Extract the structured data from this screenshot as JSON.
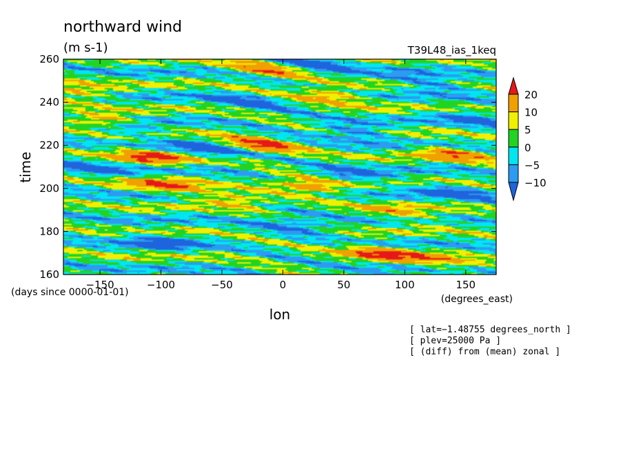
{
  "chart_data": {
    "type": "heatmap",
    "title": "northward wind",
    "units": "(m s-1)",
    "dataset": "T39L48_ias_1keq",
    "xlabel": "lon",
    "xunits": "(degrees_east)",
    "ylabel": "time",
    "yunits": "(days since 0000-01-01)",
    "xlim": [
      -180,
      175
    ],
    "ylim": [
      160,
      260
    ],
    "xticks": [
      -150,
      -100,
      -50,
      0,
      50,
      100,
      150
    ],
    "yticks": [
      160,
      180,
      200,
      220,
      240,
      260
    ],
    "colorbar": {
      "levels": [
        -10,
        -5,
        0,
        5,
        10,
        20
      ],
      "labels": [
        "20",
        "10",
        "5",
        "0",
        "−5",
        "−10"
      ],
      "colors": [
        "#1e64dc",
        "#2d9bf0",
        "#00e6f0",
        "#22d422",
        "#f0f000",
        "#f0a000",
        "#e61919"
      ]
    },
    "annotations": [
      "[ lat=−1.48755 degrees_north ]",
      "[ plev=25000 Pa ]",
      "[ (diff) from (mean) zonal ]"
    ],
    "features": [
      {
        "lon": -145,
        "time": 231,
        "value": 22
      },
      {
        "lon": -110,
        "time": 215,
        "value": 21
      },
      {
        "lon": -95,
        "time": 201,
        "value": 19
      },
      {
        "lon": -20,
        "time": 220,
        "value": 23
      },
      {
        "lon": 20,
        "time": 201,
        "value": 18
      },
      {
        "lon": 40,
        "time": 243,
        "value": 16
      },
      {
        "lon": -15,
        "time": 255,
        "value": 15
      },
      {
        "lon": 80,
        "time": 170,
        "value": 21
      },
      {
        "lon": 140,
        "time": 216,
        "value": 17
      },
      {
        "lon": -40,
        "time": 195,
        "value": 14
      },
      {
        "lon": 130,
        "time": 166,
        "value": 12
      },
      {
        "lon": 100,
        "time": 188,
        "value": 12
      },
      {
        "lon": -170,
        "time": 245,
        "value": 14
      },
      {
        "lon": -130,
        "time": 228,
        "value": -16
      },
      {
        "lon": -60,
        "time": 218,
        "value": -15
      },
      {
        "lon": 60,
        "time": 226,
        "value": -14
      },
      {
        "lon": 120,
        "time": 249,
        "value": -14
      },
      {
        "lon": -100,
        "time": 175,
        "value": -13
      },
      {
        "lon": 10,
        "time": 183,
        "value": -12
      },
      {
        "lon": 140,
        "time": 198,
        "value": -13
      },
      {
        "lon": -160,
        "time": 210,
        "value": -12
      },
      {
        "lon": 30,
        "time": 258,
        "value": -13
      },
      {
        "lon": -30,
        "time": 240,
        "value": -12
      },
      {
        "lon": 160,
        "time": 232,
        "value": -12
      },
      {
        "lon": 60,
        "time": 206,
        "value": -11
      }
    ]
  }
}
